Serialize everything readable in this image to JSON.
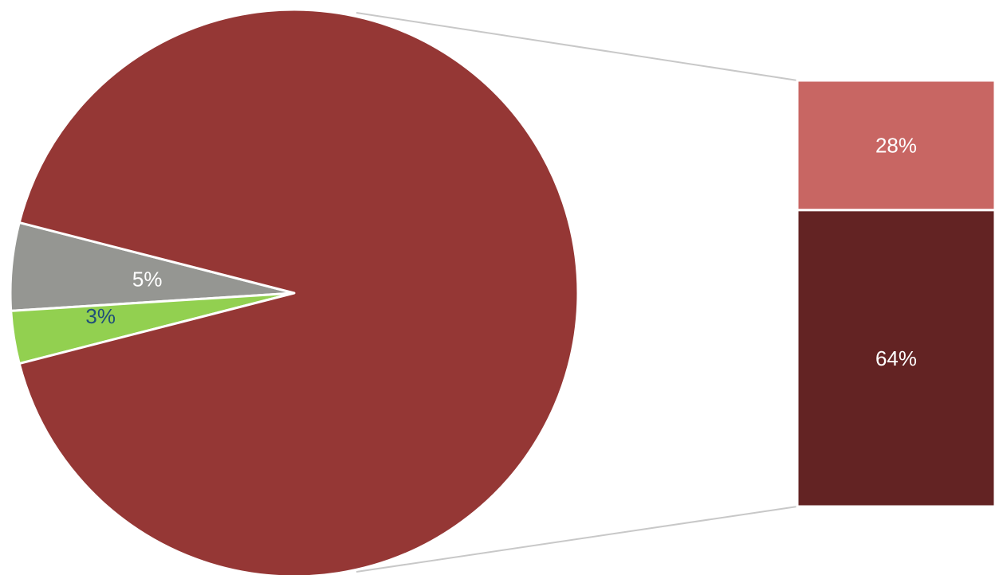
{
  "chart_data": {
    "type": "pie",
    "subtype": "pie-of-bar",
    "pie": {
      "slices": [
        {
          "value": 5,
          "label": "5%",
          "color": "#959692",
          "label_color": "#ffffff"
        },
        {
          "value": 3,
          "label": "3%",
          "color": "#92d050",
          "label_color": "#1f4e79"
        },
        {
          "value": 92,
          "label": "",
          "color": "#953735",
          "label_color": "#ffffff",
          "exploded_into_bar": true
        }
      ]
    },
    "bar": {
      "segments": [
        {
          "value": 28,
          "label": "28%",
          "color": "#c86663",
          "label_color": "#ffffff"
        },
        {
          "value": 64,
          "label": "64%",
          "color": "#632323",
          "label_color": "#ffffff"
        }
      ]
    },
    "connector_color": "#c8c8c8",
    "legend": "none"
  }
}
